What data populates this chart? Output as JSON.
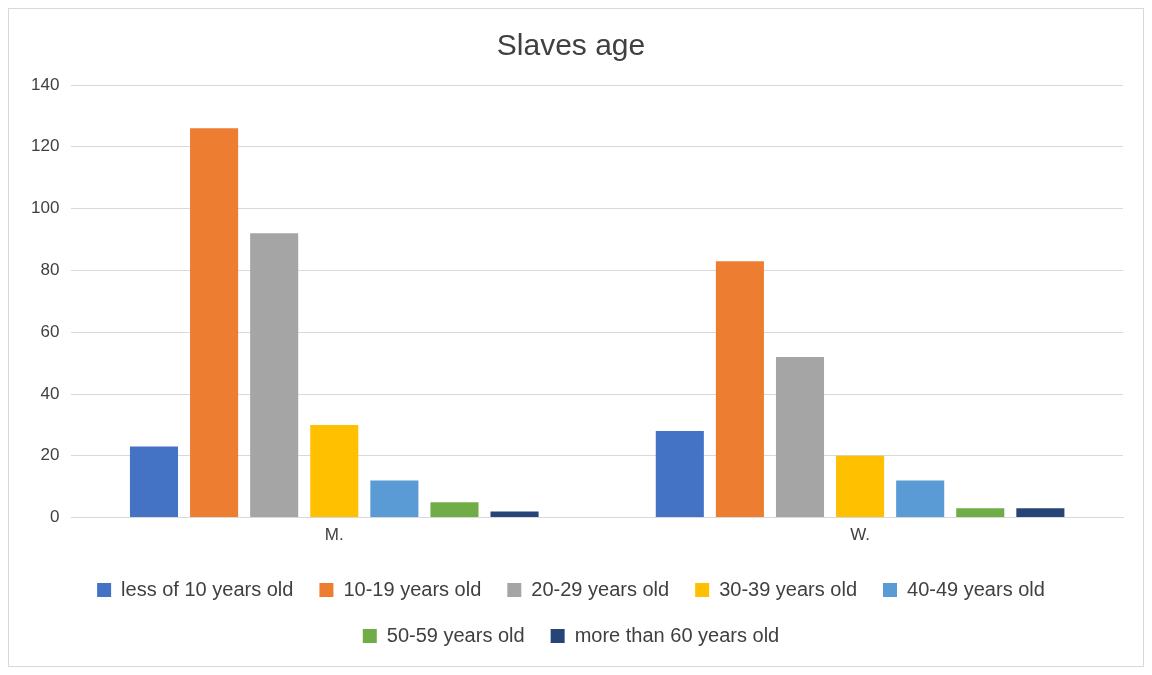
{
  "chart_data": {
    "type": "bar",
    "title": "Slaves age",
    "categories": [
      "M.",
      "W."
    ],
    "series": [
      {
        "name": "less of 10 years old",
        "color": "#4472c4",
        "values": [
          23,
          28
        ]
      },
      {
        "name": "10-19 years old",
        "color": "#ed7d31",
        "values": [
          126,
          83
        ]
      },
      {
        "name": "20-29 years old",
        "color": "#a5a5a5",
        "values": [
          92,
          52
        ]
      },
      {
        "name": "30-39 years old",
        "color": "#ffc000",
        "values": [
          30,
          20
        ]
      },
      {
        "name": "40-49 years old",
        "color": "#5b9bd5",
        "values": [
          12,
          12
        ]
      },
      {
        "name": "50-59 years old",
        "color": "#70ad47",
        "values": [
          5,
          3
        ]
      },
      {
        "name": "more than 60 years old",
        "color": "#264478",
        "values": [
          2,
          3
        ]
      }
    ],
    "ylim": [
      0,
      140
    ],
    "yticks": [
      0,
      20,
      40,
      60,
      80,
      100,
      120,
      140
    ],
    "grid": "y",
    "legend": "bottom"
  }
}
